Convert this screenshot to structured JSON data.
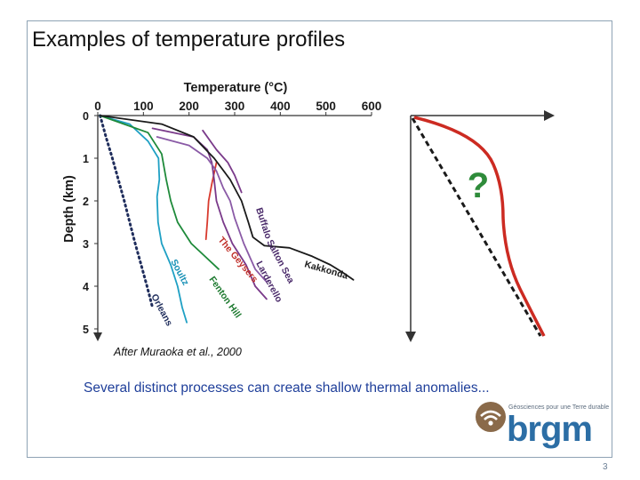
{
  "slide": {
    "title": "Examples of temperature profiles",
    "caption": "After Muraoka et al., 2000",
    "subtext": "Several distinct processes can create shallow thermal anomalies...",
    "page_number": "3"
  },
  "chart_data": [
    {
      "type": "line",
      "title": "",
      "xlabel": "Temperature (°C)",
      "ylabel": "Depth (km)",
      "xlim": [
        0,
        600
      ],
      "ylim": [
        0,
        5
      ],
      "x_ticks": [
        "0",
        "100",
        "200",
        "300",
        "400",
        "500",
        "600"
      ],
      "y_ticks": [
        "0",
        "1",
        "2",
        "3",
        "4",
        "5"
      ],
      "x_axis_position": "top",
      "y_inverted": true,
      "grid": false,
      "legend": "none (curves labelled inline)",
      "series": [
        {
          "name": "Orleans",
          "color": "#1f2d5c",
          "style": "dotted",
          "points": [
            [
              5,
              0
            ],
            [
              18,
              0.5
            ],
            [
              32,
              1.0
            ],
            [
              45,
              1.5
            ],
            [
              58,
              2.0
            ],
            [
              70,
              2.5
            ],
            [
              82,
              3.0
            ],
            [
              95,
              3.5
            ],
            [
              108,
              4.0
            ],
            [
              120,
              4.5
            ]
          ]
        },
        {
          "name": "Soultz",
          "color": "#1fa0c4",
          "style": "solid",
          "points": [
            [
              5,
              0
            ],
            [
              70,
              0.2
            ],
            [
              110,
              0.6
            ],
            [
              133,
              1.0
            ],
            [
              135,
              1.5
            ],
            [
              130,
              1.9
            ],
            [
              132,
              2.5
            ],
            [
              140,
              3.0
            ],
            [
              160,
              3.5
            ],
            [
              175,
              4.0
            ],
            [
              185,
              4.5
            ],
            [
              195,
              4.85
            ]
          ]
        },
        {
          "name": "Fenton Hill",
          "color": "#1e8a3a",
          "style": "solid",
          "points": [
            [
              5,
              0
            ],
            [
              110,
              0.4
            ],
            [
              140,
              0.9
            ],
            [
              150,
              1.5
            ],
            [
              160,
              2.0
            ],
            [
              175,
              2.5
            ],
            [
              205,
              3.0
            ],
            [
              235,
              3.3
            ],
            [
              265,
              3.6
            ]
          ]
        },
        {
          "name": "The Geysers",
          "color": "#d83a2e",
          "style": "solid",
          "points": [
            [
              260,
              1.1
            ],
            [
              250,
              1.6
            ],
            [
              243,
              2.0
            ],
            [
              240,
              2.5
            ],
            [
              237,
              2.9
            ]
          ]
        },
        {
          "name": "Larderello",
          "color": "#7a3a8a",
          "style": "solid",
          "points": [
            [
              120,
              0.3
            ],
            [
              210,
              0.5
            ],
            [
              240,
              0.8
            ],
            [
              250,
              1.1
            ],
            [
              255,
              1.5
            ],
            [
              260,
              2.0
            ],
            [
              275,
              2.5
            ],
            [
              295,
              3.0
            ],
            [
              325,
              3.5
            ],
            [
              345,
              4.0
            ],
            [
              370,
              4.3
            ]
          ]
        },
        {
          "name": "Salton Sea",
          "color": "#8a5aa6",
          "style": "solid",
          "points": [
            [
              130,
              0.5
            ],
            [
              200,
              0.7
            ],
            [
              240,
              1.0
            ],
            [
              260,
              1.3
            ],
            [
              275,
              1.7
            ],
            [
              290,
              2.0
            ],
            [
              300,
              2.4
            ],
            [
              320,
              3.0
            ],
            [
              345,
              3.6
            ],
            [
              370,
              3.9
            ]
          ]
        },
        {
          "name": "Buffalo",
          "color": "#7a3a8a",
          "style": "solid",
          "points": [
            [
              230,
              0.35
            ],
            [
              260,
              0.8
            ],
            [
              285,
              1.1
            ],
            [
              300,
              1.4
            ],
            [
              315,
              1.8
            ]
          ]
        },
        {
          "name": "Kakkonda",
          "color": "#1a1a1a",
          "style": "solid",
          "points": [
            [
              5,
              0
            ],
            [
              140,
              0.2
            ],
            [
              210,
              0.5
            ],
            [
              255,
              1.0
            ],
            [
              290,
              1.5
            ],
            [
              315,
              2.0
            ],
            [
              330,
              2.5
            ],
            [
              340,
              2.85
            ],
            [
              365,
              3.05
            ],
            [
              420,
              3.1
            ],
            [
              470,
              3.3
            ],
            [
              510,
              3.5
            ],
            [
              540,
              3.7
            ],
            [
              560,
              3.85
            ]
          ]
        }
      ]
    },
    {
      "type": "line",
      "title": "",
      "annotation": "?",
      "series": [
        {
          "name": "",
          "color": "#1a1a1a",
          "style": "dashed",
          "shape": "linear gradient from top-left to bottom-right"
        },
        {
          "name": "",
          "color": "#cc2b22",
          "style": "solid",
          "shape": "steep shallow gradient, near-isothermal middle section, then increasing again with depth"
        }
      ]
    }
  ],
  "brgm_logo": {
    "wordmark": "brgm",
    "tagline": "Géosciences pour une Terre durable",
    "colors": {
      "brown": "#8a6a4a",
      "blue": "#2c6ea5"
    }
  },
  "colors": {
    "frame_border": "#8fa3b5",
    "subtext": "#1f3f9a",
    "question_mark": "#2e8b3a"
  }
}
